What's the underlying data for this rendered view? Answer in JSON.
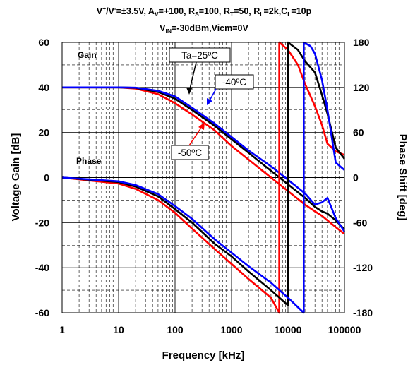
{
  "chart_data": {
    "type": "line",
    "title_line1_parts": [
      "V",
      "+",
      "/V",
      "-",
      "=±3.5V, A",
      "V",
      "=+100, R",
      "S",
      "=100, R",
      "T",
      "=50, R",
      "L",
      "=2k,C",
      "L",
      "=10p"
    ],
    "title_line2_parts": [
      "V",
      "IN",
      "=-30dBm,Vicm=0V"
    ],
    "xlabel": "Frequency [kHz]",
    "ylabel_left": "Voltage Gain [dB]",
    "ylabel_right": "Phase Shift [deg]",
    "x_scale": "log",
    "xlim": [
      1,
      100000
    ],
    "ylim_left": [
      -60,
      60
    ],
    "ylim_right": [
      -180,
      180
    ],
    "x_ticks": [
      "1",
      "10",
      "100",
      "1000",
      "10000",
      "100000"
    ],
    "y_left_ticks": [
      "60",
      "40",
      "20",
      "0",
      "-20",
      "-40",
      "-60"
    ],
    "y_right_ticks": [
      "180",
      "120",
      "60",
      "0",
      "-60",
      "-120",
      "-180"
    ],
    "inner_labels": {
      "gain": "Gain",
      "phase": "Phase"
    },
    "annotations": {
      "ta25": "Ta=25ºC",
      "m40": "-40ºC",
      "m50": "-50ºC"
    },
    "grid": true,
    "series": [
      {
        "name": "Ta=25ºC",
        "color": "#000000",
        "kind": "gain",
        "x": [
          1,
          10,
          20,
          50,
          100,
          200,
          500,
          1000,
          2000,
          5000,
          10000,
          20000,
          30000,
          40000,
          50000,
          70000,
          100000
        ],
        "y": [
          40,
          40,
          39.8,
          38,
          35,
          30,
          23,
          17,
          11,
          3,
          -3,
          -9,
          -13,
          -15,
          -16,
          -19,
          -23
        ]
      },
      {
        "name": "-40ºC",
        "color": "#0000ff",
        "kind": "gain",
        "x": [
          1,
          10,
          20,
          50,
          100,
          200,
          500,
          1000,
          2000,
          5000,
          10000,
          20000,
          30000,
          40000,
          50000,
          70000,
          100000
        ],
        "y": [
          40,
          40,
          39.9,
          38.5,
          36,
          31,
          24,
          18,
          12,
          5,
          -1,
          -7,
          -12,
          -11,
          -9,
          -18,
          -24
        ]
      },
      {
        "name": "-50ºC",
        "color": "#ff0000",
        "kind": "gain",
        "x": [
          1,
          10,
          20,
          50,
          100,
          200,
          500,
          1000,
          2000,
          5000,
          10000,
          20000,
          30000,
          40000,
          50000,
          70000,
          100000
        ],
        "y": [
          40,
          40,
          39.5,
          37,
          33,
          28,
          21,
          14,
          8,
          0,
          -6,
          -12,
          -15,
          -17,
          -19,
          -22,
          -25
        ]
      },
      {
        "name": "Ta=25ºC",
        "color": "#000000",
        "kind": "phase",
        "x": [
          1,
          10,
          20,
          50,
          100,
          200,
          500,
          1000,
          2000,
          5000,
          10000,
          10001,
          15000,
          20000,
          30000,
          40000,
          50000,
          70000,
          100000
        ],
        "y": [
          0,
          -6,
          -12,
          -25,
          -42,
          -60,
          -88,
          -105,
          -125,
          -150,
          -170,
          180,
          170,
          155,
          140,
          110,
          85,
          40,
          25
        ]
      },
      {
        "name": "-40ºC",
        "color": "#0000ff",
        "kind": "phase",
        "x": [
          1,
          10,
          20,
          50,
          100,
          200,
          500,
          1000,
          2000,
          5000,
          10000,
          19000,
          19001,
          25000,
          30000,
          40000,
          50000,
          70000,
          100000
        ],
        "y": [
          0,
          -5,
          -10,
          -22,
          -38,
          -55,
          -82,
          -100,
          -118,
          -140,
          -160,
          -180,
          180,
          175,
          165,
          130,
          90,
          20,
          10
        ]
      },
      {
        "name": "-50ºC",
        "color": "#ff0000",
        "kind": "phase",
        "x": [
          1,
          10,
          20,
          50,
          100,
          200,
          500,
          1000,
          2000,
          5000,
          7000,
          7001,
          10000,
          15000,
          20000,
          30000,
          40000,
          50000,
          70000,
          100000
        ],
        "y": [
          0,
          -8,
          -15,
          -30,
          -47,
          -68,
          -95,
          -115,
          -135,
          -160,
          -180,
          180,
          170,
          150,
          125,
          95,
          70,
          45,
          35,
          30
        ]
      }
    ]
  }
}
